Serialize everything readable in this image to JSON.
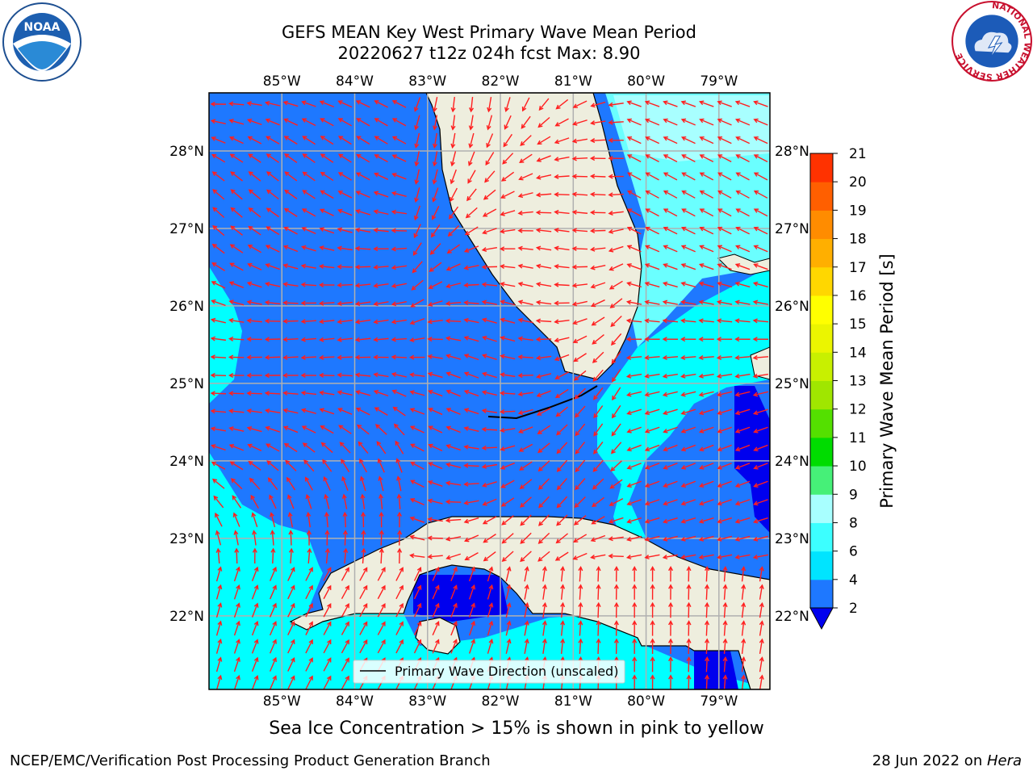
{
  "title": {
    "line1": "GEFS MEAN Key West Primary Wave Mean Period",
    "line2": "20220627 t12z 024h fcst   Max: 8.90"
  },
  "logos": {
    "left": {
      "icon": "noaa-logo",
      "text": "NOAA"
    },
    "right": {
      "icon": "nws-logo",
      "ring_text": "NATIONAL WEATHER SERVICE"
    }
  },
  "map": {
    "lon_labels": [
      "85°W",
      "84°W",
      "83°W",
      "82°W",
      "81°W",
      "80°W",
      "79°W"
    ],
    "lat_labels": [
      "28°N",
      "27°N",
      "26°N",
      "25°N",
      "24°N",
      "23°N",
      "22°N"
    ],
    "lon_range": [
      -86,
      -78.3
    ],
    "lat_range": [
      21.05,
      28.75
    ],
    "colors": {
      "land": "#eeeede",
      "blue": "#1e78ff",
      "deep_blue": "#0000ee",
      "cyan": "#00ffff",
      "light_cyan": "#6affff",
      "pale_cyan": "#a8ffff",
      "arrow": "#ff1f1f",
      "grid": "#b0b0b0"
    },
    "legend_label": "Primary Wave Direction (unscaled)"
  },
  "colorbar": {
    "label": "Primary Wave Mean Period [s]",
    "ticks": [
      "2",
      "4",
      "6",
      "8",
      "9",
      "10",
      "11",
      "12",
      "13",
      "14",
      "15",
      "16",
      "17",
      "18",
      "19",
      "20",
      "21"
    ],
    "colors": [
      "#1e78ff",
      "#00e4ff",
      "#3cffff",
      "#a8ffff",
      "#46f078",
      "#00dc00",
      "#54e000",
      "#a0e600",
      "#c8f000",
      "#ebf500",
      "#ffff00",
      "#ffd700",
      "#ffaf00",
      "#ff8c00",
      "#ff5f00",
      "#ff3200",
      "#ff0000"
    ],
    "extend_color": "#0000ee"
  },
  "caption": "Sea Ice Concentration > 15% is shown in pink to yellow",
  "footer": {
    "left": "NCEP/EMC/Verification Post Processing Product Generation Branch",
    "right_prefix": "28 Jun 2022 on ",
    "right_machine": "Hera"
  }
}
